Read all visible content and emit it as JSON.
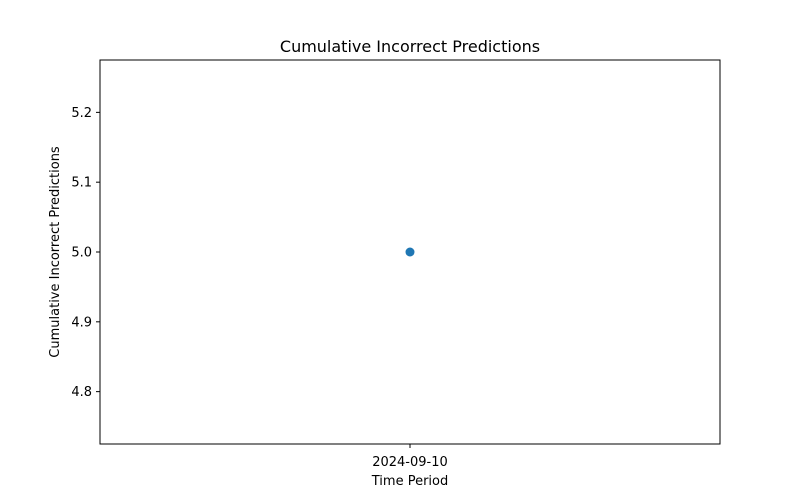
{
  "chart_data": {
    "type": "line",
    "title": "Cumulative Incorrect Predictions",
    "xlabel": "Time Period",
    "ylabel": "Cumulative Incorrect Predictions",
    "x_categories": [
      "2024-09-10"
    ],
    "series": [
      {
        "values": [
          5.0
        ],
        "color": "#1f77b4",
        "marker": "circle"
      }
    ],
    "ylim": [
      4.725,
      5.275
    ],
    "yticks": [
      4.8,
      4.9,
      5.0,
      5.1,
      5.2
    ],
    "ytick_labels": [
      "4.8",
      "4.9",
      "5.0",
      "5.1",
      "5.2"
    ],
    "grid": false,
    "legend": false
  }
}
